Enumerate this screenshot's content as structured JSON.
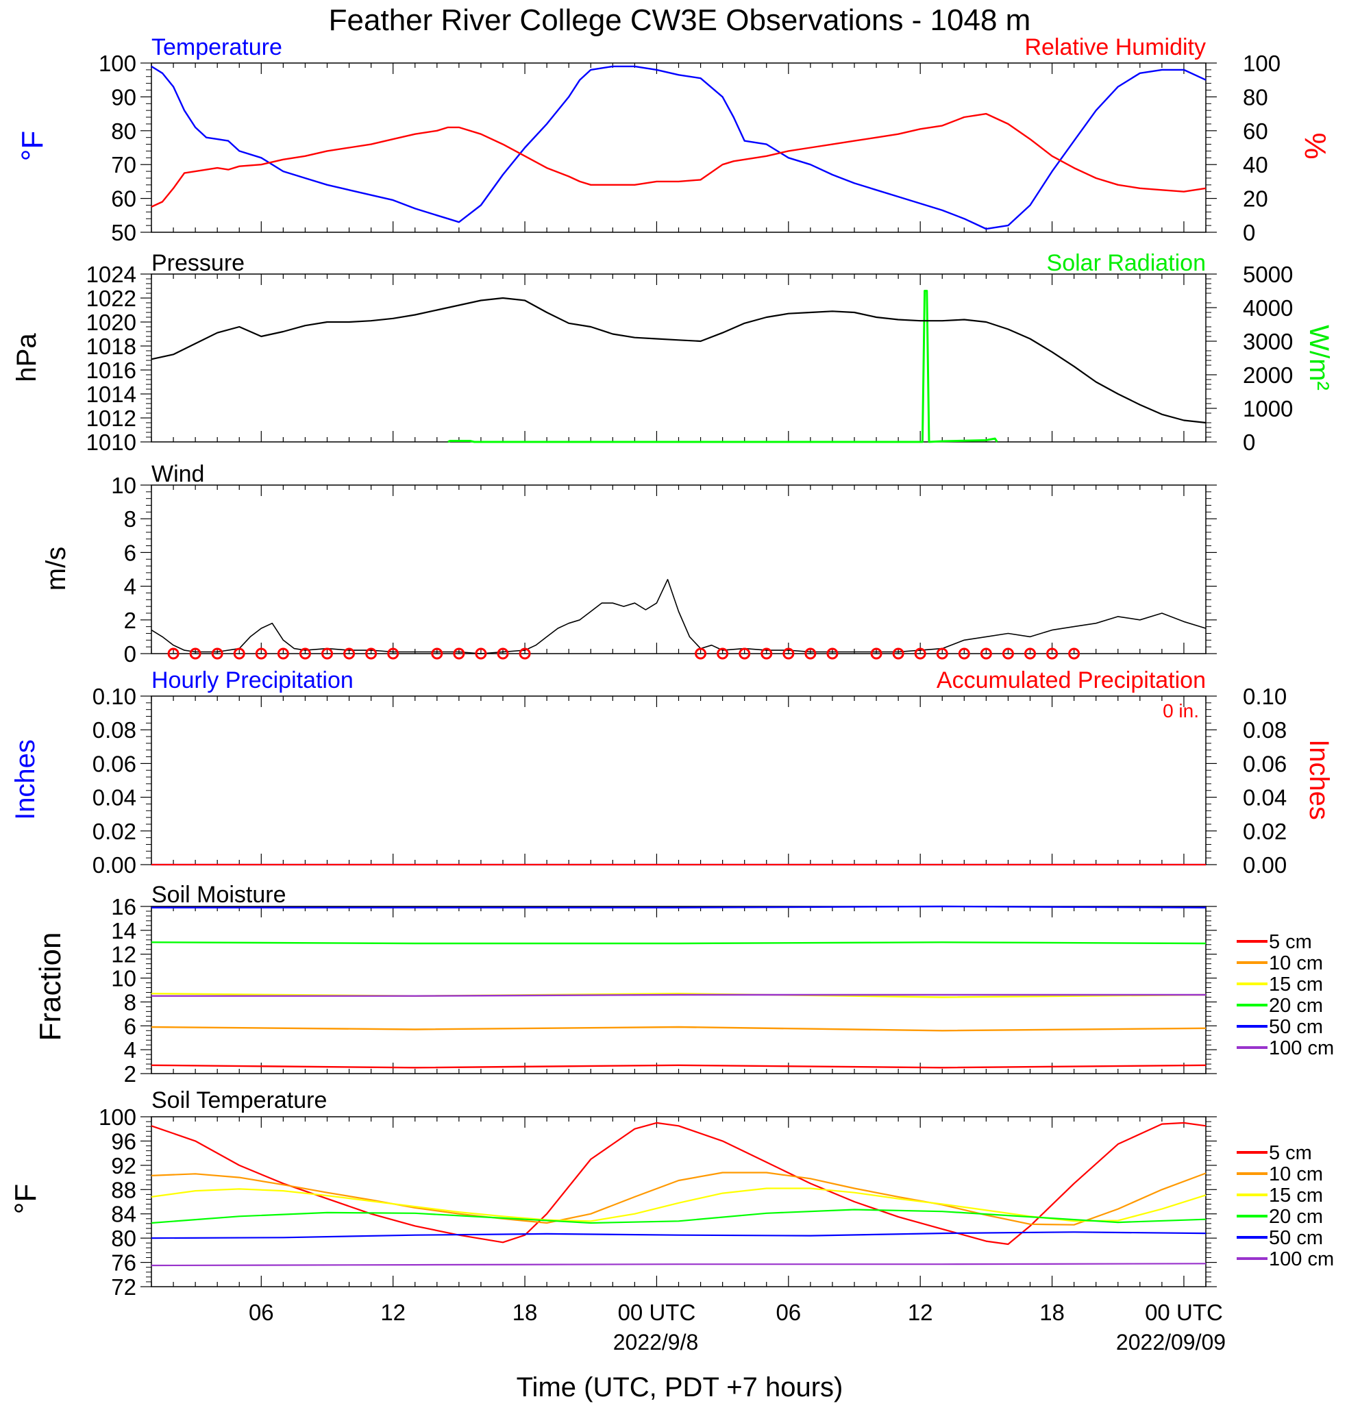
{
  "title": "Feather River College CW3E Observations - 1048 m",
  "xaxis": {
    "tick_labels": [
      "06",
      "12",
      "18",
      "00 UTC",
      "06",
      "12",
      "18",
      "00 UTC"
    ],
    "date_label_1": "2022/9/8",
    "date_label_2": "2022/09/09",
    "xlabel": "Time (UTC, PDT +7 hours)"
  },
  "colors": {
    "temperature": "#0000ff",
    "humidity": "#ff0000",
    "pressure": "#000000",
    "solar": "#00ff00",
    "wind": "#000000",
    "barb": "#ff0000",
    "cm5": "#ff0000",
    "cm10": "#ff9900",
    "cm15": "#ffff00",
    "cm20": "#00ff00",
    "cm50": "#0000ff",
    "cm100": "#9933cc"
  },
  "panels": {
    "temp": {
      "left_title": "Temperature",
      "right_title": "Relative Humidity",
      "left_unit": "°F",
      "right_unit": "%",
      "left_ticks": [
        "50",
        "60",
        "70",
        "80",
        "90",
        "100"
      ],
      "right_ticks": [
        "0",
        "20",
        "40",
        "60",
        "80",
        "100"
      ]
    },
    "pressure": {
      "left_title": "Pressure",
      "right_title": "Solar Radiation",
      "left_unit": "hPa",
      "right_unit": "W/m²",
      "left_ticks": [
        "1010",
        "1012",
        "1014",
        "1016",
        "1018",
        "1020",
        "1022",
        "1024"
      ],
      "right_ticks": [
        "0",
        "1000",
        "2000",
        "3000",
        "4000",
        "5000"
      ]
    },
    "wind": {
      "left_title": "Wind",
      "left_unit": "m/s",
      "left_ticks": [
        "0",
        "2",
        "4",
        "6",
        "8",
        "10"
      ]
    },
    "precip": {
      "left_title": "Hourly Precipitation",
      "right_title": "Accumulated Precipitation",
      "accum_label": "0 in.",
      "left_unit": "Inches",
      "right_unit": "Inches",
      "left_ticks": [
        "0.00",
        "0.02",
        "0.04",
        "0.06",
        "0.08",
        "0.10"
      ],
      "right_ticks": [
        "0.00",
        "0.02",
        "0.04",
        "0.06",
        "0.08",
        "0.10"
      ]
    },
    "soilm": {
      "left_title": "Soil Moisture",
      "left_unit": "Fraction",
      "left_ticks": [
        "2",
        "4",
        "6",
        "8",
        "10",
        "12",
        "14",
        "16"
      ],
      "legend": [
        "5 cm",
        "10 cm",
        "15 cm",
        "20 cm",
        "50 cm",
        "100 cm"
      ]
    },
    "soilt": {
      "left_title": "Soil Temperature",
      "left_unit": "°F",
      "left_ticks": [
        "72",
        "76",
        "80",
        "84",
        "88",
        "92",
        "96",
        "100"
      ],
      "legend": [
        "5 cm",
        "10 cm",
        "15 cm",
        "20 cm",
        "50 cm",
        "100 cm"
      ]
    }
  },
  "chart_data": [
    {
      "type": "line",
      "title": "Temperature / Relative Humidity",
      "x_unit": "hours since 2022-09-07 01 UTC",
      "xlim": [
        0,
        48
      ],
      "ylim": [
        50,
        100
      ],
      "y2lim": [
        0,
        100
      ],
      "series": [
        {
          "name": "Temperature",
          "axis": "left",
          "unit": "F",
          "x": [
            0,
            0.5,
            1,
            1.5,
            2,
            2.5,
            3,
            3.5,
            4,
            5,
            6,
            7,
            8,
            9,
            10,
            11,
            12,
            13,
            13.5,
            14,
            15,
            16,
            17,
            18,
            19,
            19.5,
            20,
            21,
            22,
            23,
            24,
            25,
            26,
            26.5,
            27,
            28,
            29,
            30,
            31,
            32,
            33,
            34,
            35,
            36,
            37,
            37.5,
            38,
            39,
            40,
            41,
            42,
            43,
            44,
            45,
            46,
            47,
            48
          ],
          "y": [
            99,
            97,
            93,
            86,
            81,
            78,
            77.5,
            77,
            74,
            72,
            68,
            66,
            64,
            62.5,
            61,
            59.5,
            57,
            55,
            54,
            53,
            58,
            67,
            75,
            82,
            90,
            95,
            98,
            99,
            99,
            98,
            96.5,
            95.5,
            90,
            84,
            77,
            76,
            72,
            70,
            67,
            64.5,
            62.5,
            60.5,
            58.5,
            56.5,
            54,
            52.5,
            51,
            52,
            58,
            68,
            77,
            86,
            93,
            97,
            98,
            98,
            95
          ]
        },
        {
          "name": "Relative Humidity",
          "axis": "right",
          "unit": "%",
          "x": [
            0,
            0.5,
            1,
            1.5,
            2,
            2.5,
            3,
            3.5,
            4,
            5,
            6,
            7,
            8,
            9,
            10,
            11,
            12,
            13,
            13.5,
            14,
            15,
            16,
            17,
            18,
            19,
            19.5,
            20,
            21,
            22,
            23,
            24,
            25,
            26,
            26.5,
            27,
            28,
            29,
            30,
            31,
            32,
            33,
            34,
            35,
            36,
            37,
            37.5,
            38,
            39,
            40,
            41,
            42,
            43,
            44,
            45,
            46,
            47,
            48
          ],
          "y": [
            15,
            18,
            26,
            35,
            36,
            37,
            38,
            37,
            39,
            40,
            43,
            45,
            48,
            50,
            52,
            55,
            58,
            60,
            62,
            62,
            58,
            52,
            45,
            38,
            33,
            30,
            28,
            28,
            28,
            30,
            30,
            31,
            40,
            42,
            43,
            45,
            48,
            50,
            52,
            54,
            56,
            58,
            61,
            63,
            68,
            69,
            70,
            64,
            55,
            45,
            38,
            32,
            28,
            26,
            25,
            24,
            26
          ]
        }
      ]
    },
    {
      "type": "line",
      "title": "Pressure / Solar Radiation",
      "x_unit": "hours since 2022-09-07 01 UTC",
      "xlim": [
        0,
        48
      ],
      "ylim": [
        1010,
        1024
      ],
      "y2lim": [
        0,
        5000
      ],
      "series": [
        {
          "name": "Pressure",
          "axis": "left",
          "unit": "hPa",
          "x": [
            0,
            1,
            2,
            3,
            4,
            5,
            6,
            7,
            8,
            9,
            10,
            11,
            12,
            13,
            14,
            15,
            16,
            17,
            18,
            19,
            20,
            21,
            22,
            23,
            24,
            25,
            26,
            27,
            28,
            29,
            30,
            31,
            32,
            33,
            34,
            35,
            36,
            37,
            38,
            39,
            40,
            41,
            42,
            43,
            44,
            45,
            46,
            47,
            48
          ],
          "y": [
            1016.9,
            1017.3,
            1018.2,
            1019.1,
            1019.6,
            1018.8,
            1019.2,
            1019.7,
            1020.0,
            1020.0,
            1020.1,
            1020.3,
            1020.6,
            1021.0,
            1021.4,
            1021.8,
            1022.0,
            1021.8,
            1020.8,
            1019.9,
            1019.6,
            1019.0,
            1018.7,
            1018.6,
            1018.5,
            1018.4,
            1019.1,
            1019.9,
            1020.4,
            1020.7,
            1020.8,
            1020.9,
            1020.8,
            1020.4,
            1020.2,
            1020.1,
            1020.1,
            1020.2,
            1020.0,
            1019.4,
            1018.6,
            1017.5,
            1016.3,
            1015.0,
            1014.0,
            1013.1,
            1012.3,
            1011.8,
            1011.6
          ]
        },
        {
          "name": "Solar Radiation",
          "axis": "right",
          "unit": "W/m2",
          "x": [
            13.5,
            13.6,
            14.5,
            14.7,
            35.1,
            35.2,
            35.3,
            35.4,
            36.0,
            38.0,
            38.4,
            38.5
          ],
          "y": [
            0,
            30,
            30,
            0,
            0,
            4500,
            4500,
            0,
            20,
            50,
            100,
            0
          ]
        }
      ]
    },
    {
      "type": "line",
      "title": "Wind",
      "x_unit": "hours since 2022-09-07 01 UTC",
      "xlim": [
        0,
        48
      ],
      "ylim": [
        0,
        10
      ],
      "series": [
        {
          "name": "Wind speed",
          "unit": "m/s",
          "x": [
            0,
            0.5,
            1,
            1.5,
            2,
            3,
            4,
            4.5,
            5,
            5.5,
            6,
            6.5,
            7,
            8,
            9,
            10,
            11,
            12,
            13,
            14,
            15,
            16,
            17,
            17.5,
            18,
            18.5,
            19,
            19.5,
            20,
            20.5,
            21,
            21.5,
            22,
            22.5,
            23,
            23.5,
            24,
            24.5,
            25,
            25.5,
            26,
            27,
            28,
            29,
            30,
            31,
            32,
            33,
            34,
            35,
            36,
            37,
            38,
            39,
            40,
            41,
            42,
            43,
            44,
            45,
            46,
            47,
            48
          ],
          "y": [
            1.4,
            1.0,
            0.5,
            0.2,
            0.1,
            0.1,
            0.3,
            1.0,
            1.5,
            1.8,
            0.8,
            0.3,
            0.2,
            0.3,
            0.2,
            0.2,
            0.1,
            0.1,
            0.1,
            0.1,
            0.0,
            0.1,
            0.2,
            0.5,
            1.0,
            1.5,
            1.8,
            2.0,
            2.5,
            3.0,
            3.0,
            2.8,
            3.0,
            2.6,
            3.0,
            4.4,
            2.5,
            1.0,
            0.3,
            0.5,
            0.2,
            0.3,
            0.2,
            0.2,
            0.1,
            0.1,
            0.1,
            0.1,
            0.1,
            0.2,
            0.3,
            0.8,
            1.0,
            1.2,
            1.0,
            1.4,
            1.6,
            1.8,
            2.2,
            2.0,
            2.4,
            1.9,
            1.5
          ]
        }
      ]
    },
    {
      "type": "line",
      "title": "Hourly Precipitation / Accumulated Precipitation",
      "x_unit": "hours since 2022-09-07 01 UTC",
      "xlim": [
        0,
        48
      ],
      "ylim": [
        0,
        0.1
      ],
      "series": [
        {
          "name": "Hourly Precipitation",
          "unit": "in",
          "x": [
            0,
            48
          ],
          "y": [
            0,
            0
          ]
        },
        {
          "name": "Accumulated Precipitation",
          "unit": "in",
          "x": [
            0,
            48
          ],
          "y": [
            0,
            0
          ]
        }
      ]
    },
    {
      "type": "line",
      "title": "Soil Moisture",
      "x_unit": "hours since 2022-09-07 01 UTC",
      "xlim": [
        0,
        48
      ],
      "ylim": [
        2,
        16
      ],
      "series": [
        {
          "name": "5 cm",
          "x": [
            0,
            12,
            24,
            36,
            48
          ],
          "y": [
            2.7,
            2.5,
            2.7,
            2.5,
            2.7
          ]
        },
        {
          "name": "10 cm",
          "x": [
            0,
            12,
            24,
            36,
            48
          ],
          "y": [
            5.9,
            5.7,
            5.9,
            5.6,
            5.8
          ]
        },
        {
          "name": "15 cm",
          "x": [
            0,
            12,
            24,
            36,
            48
          ],
          "y": [
            8.7,
            8.5,
            8.7,
            8.4,
            8.6
          ]
        },
        {
          "name": "20 cm",
          "x": [
            0,
            12,
            24,
            36,
            48
          ],
          "y": [
            13.0,
            12.9,
            12.9,
            13.0,
            12.9
          ]
        },
        {
          "name": "50 cm",
          "x": [
            0,
            12,
            24,
            36,
            48
          ],
          "y": [
            15.9,
            15.9,
            15.9,
            16.0,
            15.9
          ]
        },
        {
          "name": "100 cm",
          "x": [
            0,
            12,
            24,
            36,
            48
          ],
          "y": [
            8.5,
            8.5,
            8.6,
            8.6,
            8.6
          ]
        }
      ]
    },
    {
      "type": "line",
      "title": "Soil Temperature",
      "x_unit": "hours since 2022-09-07 01 UTC",
      "xlim": [
        0,
        48
      ],
      "ylim": [
        72,
        100
      ],
      "series": [
        {
          "name": "5 cm",
          "x": [
            0,
            2,
            4,
            6,
            8,
            10,
            12,
            14,
            16,
            17,
            18,
            20,
            22,
            23,
            24,
            26,
            28,
            30,
            32,
            34,
            36,
            38,
            39,
            40,
            42,
            44,
            46,
            47,
            48
          ],
          "y": [
            98.5,
            96,
            92,
            89,
            86.5,
            84,
            82,
            80.5,
            79.3,
            80.5,
            84,
            93,
            98,
            99,
            98.5,
            96,
            92.5,
            89,
            86,
            83.5,
            81.5,
            79.5,
            79,
            82,
            89,
            95.5,
            98.8,
            99,
            98.5
          ]
        },
        {
          "name": "10 cm",
          "x": [
            0,
            2,
            4,
            6,
            8,
            10,
            12,
            14,
            16,
            18,
            20,
            22,
            24,
            26,
            28,
            30,
            32,
            34,
            36,
            38,
            40,
            42,
            44,
            46,
            48
          ],
          "y": [
            90.3,
            90.6,
            90,
            88.8,
            87.5,
            86.3,
            85,
            84,
            83.2,
            82.5,
            84,
            86.8,
            89.5,
            90.8,
            90.8,
            89.8,
            88.2,
            86.8,
            85.5,
            83.8,
            82.3,
            82.2,
            84.8,
            88,
            90.7
          ]
        },
        {
          "name": "15 cm",
          "x": [
            0,
            2,
            4,
            6,
            8,
            10,
            12,
            14,
            16,
            18,
            20,
            22,
            24,
            26,
            28,
            30,
            32,
            34,
            36,
            38,
            40,
            42,
            44,
            46,
            48
          ],
          "y": [
            86.8,
            87.8,
            88.1,
            87.8,
            87,
            86.1,
            85.2,
            84.3,
            83.6,
            83,
            82.8,
            84,
            85.8,
            87.4,
            88.2,
            88.2,
            87.5,
            86.5,
            85.6,
            84.6,
            83.6,
            82.8,
            82.9,
            84.8,
            87.1
          ]
        },
        {
          "name": "20 cm",
          "x": [
            0,
            4,
            8,
            12,
            16,
            20,
            24,
            28,
            32,
            36,
            40,
            44,
            48
          ],
          "y": [
            82.5,
            83.6,
            84.2,
            84.1,
            83.3,
            82.5,
            82.8,
            84.1,
            84.7,
            84.4,
            83.5,
            82.6,
            83.1
          ]
        },
        {
          "name": "50 cm",
          "x": [
            0,
            6,
            12,
            18,
            24,
            30,
            36,
            42,
            48
          ],
          "y": [
            80.0,
            80.1,
            80.5,
            80.7,
            80.5,
            80.4,
            80.8,
            81.0,
            80.8
          ]
        },
        {
          "name": "100 cm",
          "x": [
            0,
            12,
            24,
            36,
            48
          ],
          "y": [
            75.5,
            75.6,
            75.7,
            75.7,
            75.8
          ]
        }
      ]
    }
  ]
}
